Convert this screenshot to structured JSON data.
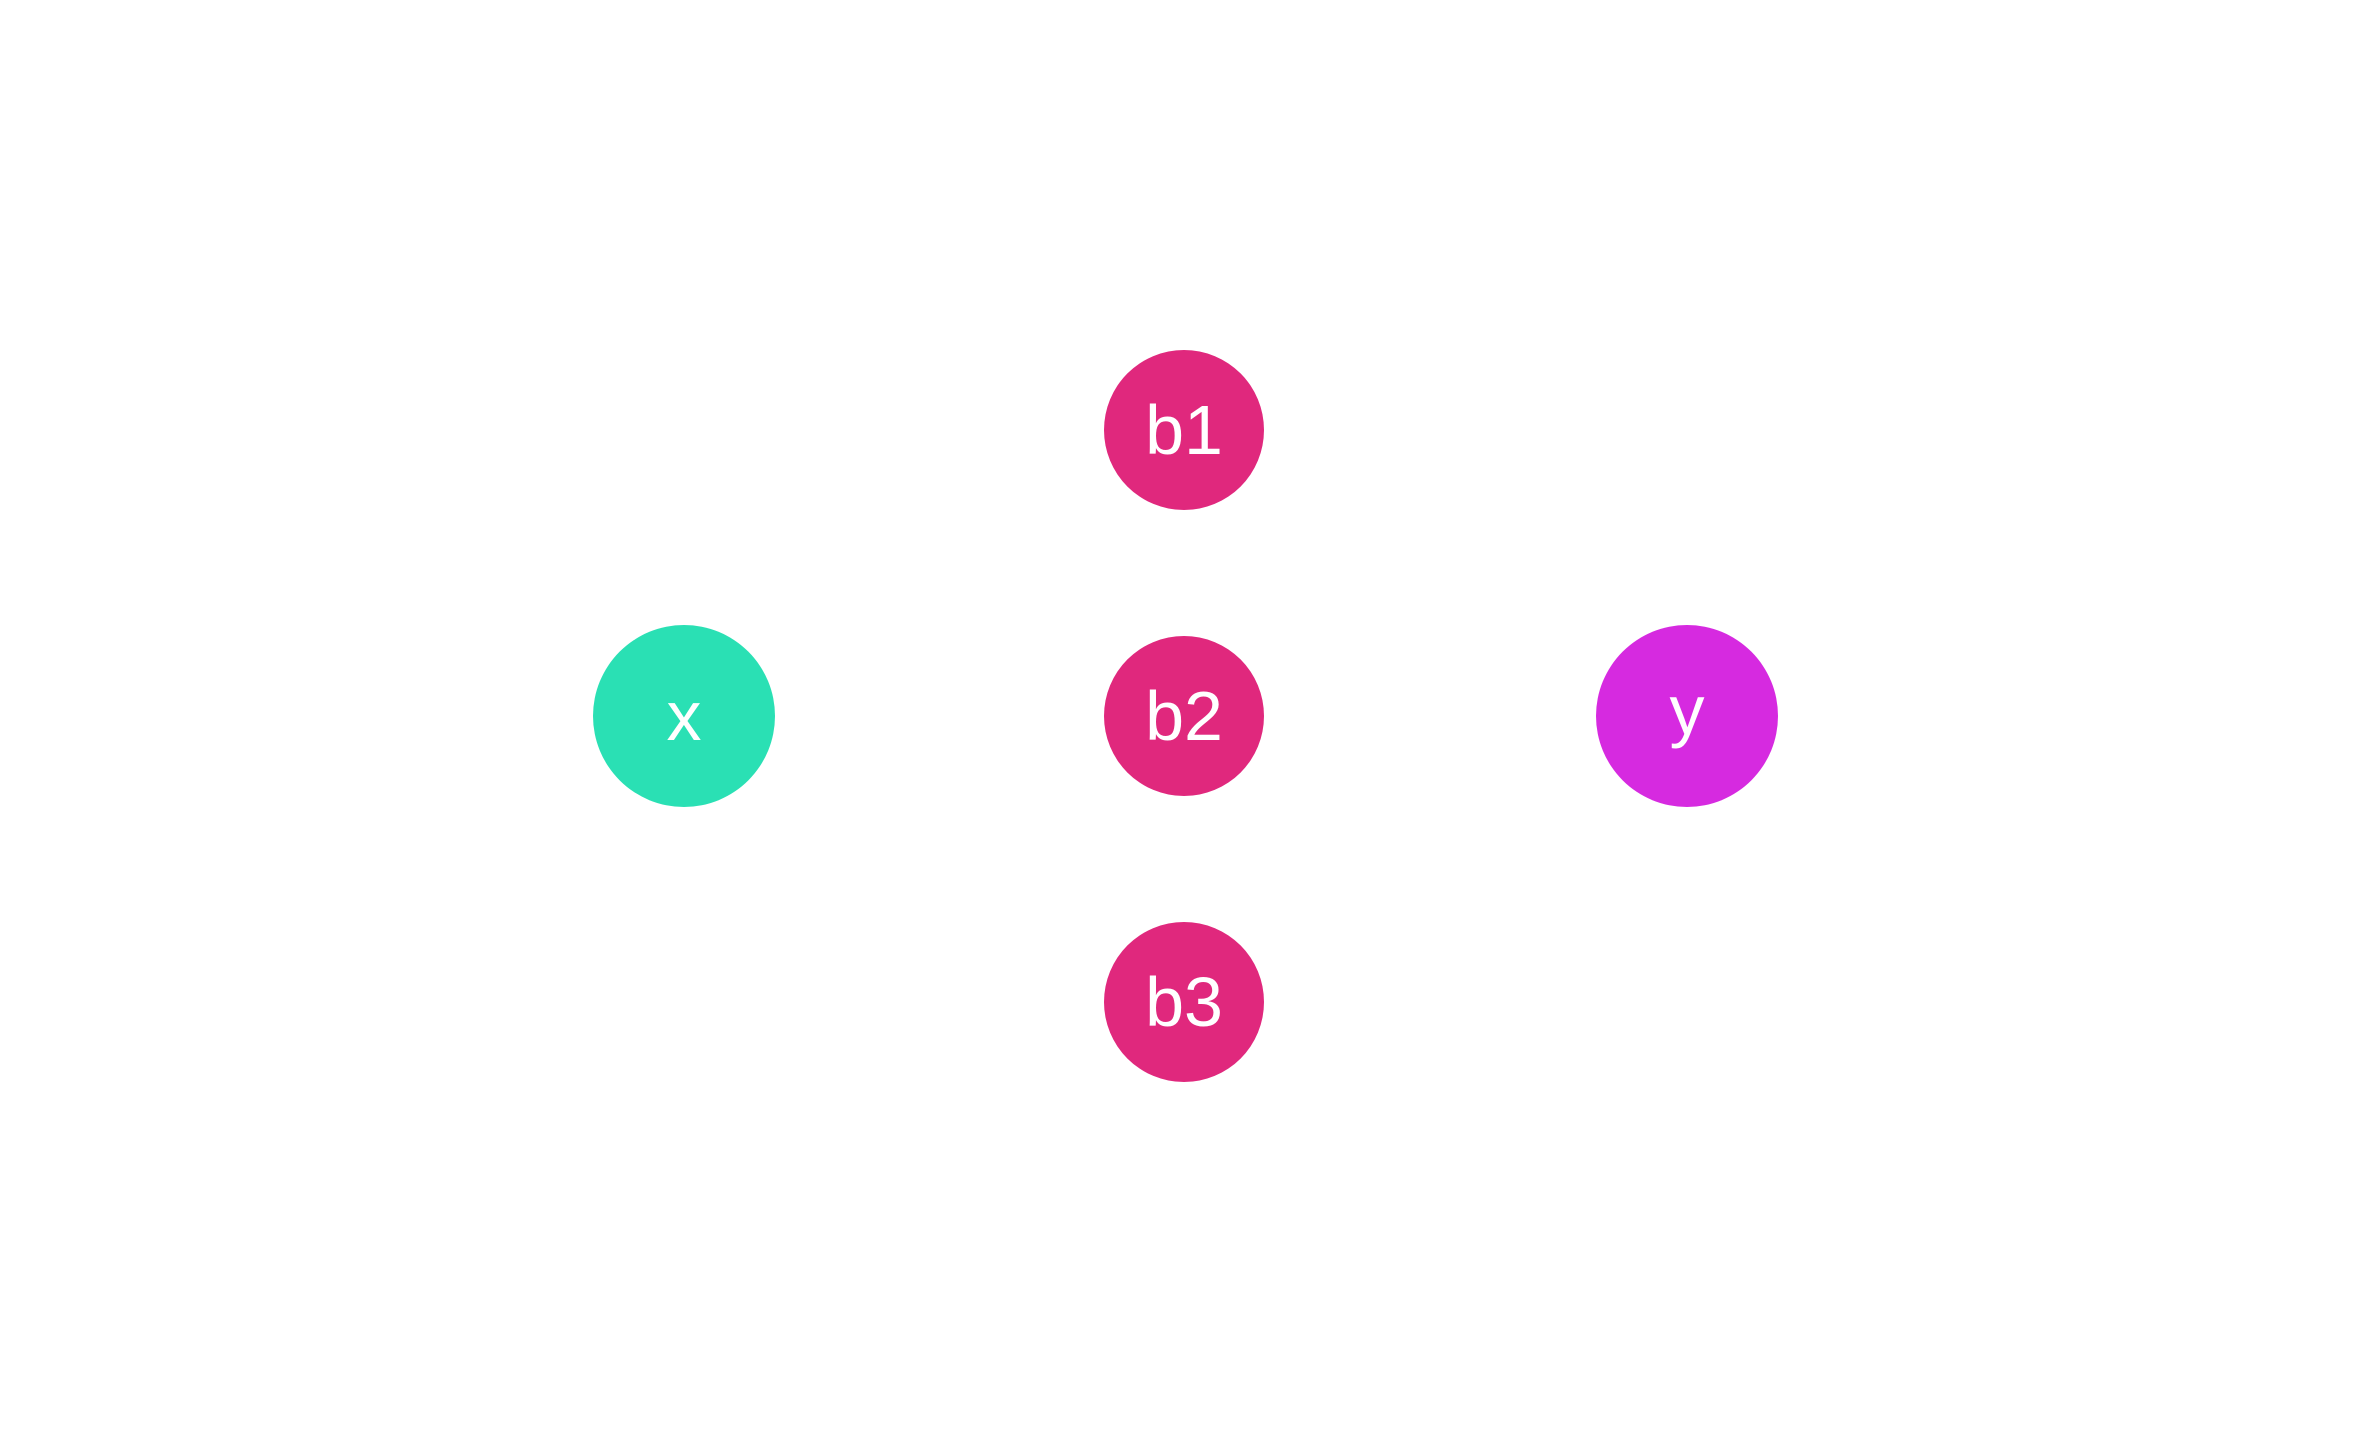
{
  "diagram": {
    "nodes": [
      {
        "id": "x",
        "label": "x",
        "color": "#2ae0b4"
      },
      {
        "id": "b1",
        "label": "b1",
        "color": "#e0287d"
      },
      {
        "id": "b2",
        "label": "b2",
        "color": "#e0287d"
      },
      {
        "id": "b3",
        "label": "b3",
        "color": "#e0287d"
      },
      {
        "id": "y",
        "label": "y",
        "color": "#d62ae0"
      }
    ]
  }
}
